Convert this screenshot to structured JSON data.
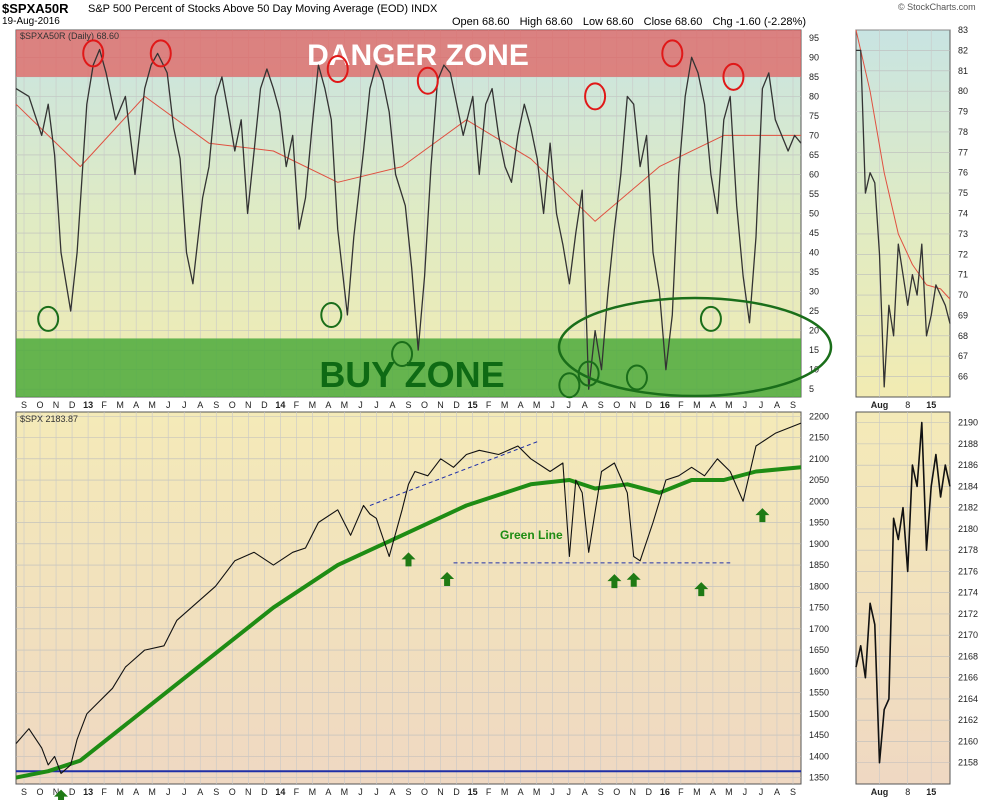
{
  "header": {
    "symbol": "$SPXA50R",
    "description": "S&P 500 Percent of Stocks Above 50 Day Moving Average (EOD)",
    "exchange": "INDX",
    "date": "19-Aug-2016",
    "brand": "© StockCharts.com",
    "quote": {
      "open": "Open 68.60",
      "high": "High 68.60",
      "low": "Low 68.60",
      "close": "Close 68.60",
      "chg": "Chg -1.60 (-2.28%)"
    }
  },
  "colors": {
    "ink": "#333333",
    "ma": "#e05040",
    "green_line": "#1e8c14",
    "danger": "#e06060",
    "buy": "#4caa3c",
    "baseline": "#1f2fa8",
    "circle_red": "#e01818",
    "circle_green": "#1a6e1a"
  },
  "annotations": {
    "danger_zone": "DANGER ZONE",
    "buy_zone": "BUY ZONE",
    "green_line": "Green Line"
  },
  "chart_data": [
    {
      "type": "line",
      "name": "top-panel",
      "legend": "$SPXA50R (Daily) 68.60",
      "ylim": [
        3,
        97
      ],
      "yticks": [
        5,
        10,
        15,
        20,
        25,
        30,
        35,
        40,
        45,
        50,
        55,
        60,
        65,
        70,
        75,
        80,
        85,
        90,
        95
      ],
      "danger_zone": [
        85,
        97
      ],
      "buy_zone": [
        3,
        18
      ],
      "x_labels": [
        "S",
        "O",
        "N",
        "D",
        "13",
        "F",
        "M",
        "A",
        "M",
        "J",
        "J",
        "A",
        "S",
        "O",
        "N",
        "D",
        "14",
        "F",
        "M",
        "A",
        "M",
        "J",
        "J",
        "A",
        "S",
        "O",
        "N",
        "D",
        "15",
        "F",
        "M",
        "A",
        "M",
        "J",
        "J",
        "A",
        "S",
        "O",
        "N",
        "D",
        "16",
        "F",
        "M",
        "A",
        "M",
        "J",
        "J",
        "A",
        "S"
      ],
      "series": [
        {
          "x": [
            0,
            4,
            8,
            10,
            12,
            14,
            17,
            19,
            22,
            24,
            26,
            28,
            31,
            34,
            37,
            40,
            42,
            44,
            47,
            49,
            51,
            53,
            55,
            58,
            60,
            62,
            64,
            66,
            68,
            70,
            72,
            74,
            76,
            78,
            80,
            82,
            84,
            86,
            88,
            90,
            92,
            94,
            96,
            98,
            100,
            103,
            105,
            108,
            110,
            112,
            114,
            116,
            118,
            121,
            123,
            125,
            127,
            129,
            131,
            133,
            135,
            137,
            139,
            142,
            144,
            146,
            148,
            150,
            152,
            154,
            156,
            158,
            160,
            162,
            164,
            166,
            168,
            170,
            172,
            174,
            176,
            178,
            180,
            182,
            184,
            186,
            188,
            190,
            192,
            194,
            196,
            198,
            200,
            202,
            204,
            206,
            208,
            210,
            212,
            214,
            216,
            218,
            220,
            222,
            224,
            226,
            228,
            230,
            232,
            234,
            236,
            238,
            240,
            242,
            244
          ],
          "values": [
            82,
            80,
            70,
            78,
            65,
            40,
            25,
            40,
            78,
            88,
            92,
            86,
            74,
            80,
            60,
            82,
            88,
            91,
            86,
            72,
            64,
            40,
            32,
            54,
            62,
            80,
            85,
            76,
            66,
            74,
            50,
            66,
            82,
            87,
            82,
            76,
            62,
            70,
            46,
            54,
            72,
            88,
            82,
            74,
            46,
            24,
            44,
            66,
            82,
            88,
            84,
            76,
            60,
            52,
            36,
            15,
            34,
            62,
            84,
            88,
            86,
            78,
            70,
            80,
            60,
            78,
            82,
            70,
            62,
            58,
            70,
            78,
            72,
            64,
            50,
            68,
            50,
            42,
            32,
            45,
            56,
            5,
            20,
            10,
            30,
            46,
            60,
            80,
            78,
            62,
            70,
            40,
            30,
            10,
            24,
            60,
            80,
            90,
            86,
            78,
            60,
            50,
            74,
            80,
            52,
            34,
            22,
            44,
            82,
            86,
            74,
            70,
            66,
            70,
            68
          ]
        },
        {
          "x": [
            0,
            20,
            40,
            60,
            80,
            100,
            120,
            140,
            160,
            180,
            200,
            220,
            244
          ],
          "values": [
            78,
            62,
            80,
            68,
            66,
            58,
            62,
            74,
            64,
            48,
            62,
            70,
            70
          ]
        }
      ],
      "circles_red": [
        {
          "x": 24,
          "v": 91
        },
        {
          "x": 45,
          "v": 91
        },
        {
          "x": 100,
          "v": 87
        },
        {
          "x": 128,
          "v": 84
        },
        {
          "x": 180,
          "v": 80
        },
        {
          "x": 204,
          "v": 91
        },
        {
          "x": 223,
          "v": 85
        }
      ],
      "circles_green": [
        {
          "x": 10,
          "v": 23
        },
        {
          "x": 98,
          "v": 24
        },
        {
          "x": 120,
          "v": 14
        },
        {
          "x": 172,
          "v": 6
        },
        {
          "x": 178,
          "v": 9
        },
        {
          "x": 193,
          "v": 8
        },
        {
          "x": 216,
          "v": 23
        }
      ]
    },
    {
      "type": "line",
      "name": "top-inset",
      "ylim": [
        65,
        83
      ],
      "yticks": [
        66,
        67,
        68,
        69,
        70,
        71,
        72,
        73,
        74,
        75,
        76,
        77,
        78,
        79,
        80,
        81,
        82,
        83
      ],
      "x_labels": [
        "Aug",
        "8",
        "15"
      ],
      "series": [
        {
          "x": [
            0,
            1,
            2,
            3,
            4,
            5,
            6,
            7,
            8,
            9,
            10,
            11,
            12,
            13,
            14,
            15,
            16,
            17,
            18,
            19,
            20
          ],
          "values": [
            82,
            82,
            75,
            76,
            75.5,
            72,
            65.5,
            69.5,
            68,
            72.5,
            71,
            69.5,
            71,
            70,
            72.5,
            68,
            69,
            70.5,
            70,
            69.5,
            68.6
          ]
        },
        {
          "x": [
            0,
            3,
            6,
            9,
            12,
            15,
            18,
            20
          ],
          "values": [
            83,
            80,
            76,
            73,
            71.5,
            70.5,
            70.3,
            69.8
          ]
        }
      ]
    },
    {
      "type": "line",
      "name": "bottom-panel",
      "legend": "$SPX 2183.87",
      "ylim": [
        1335,
        2210
      ],
      "yticks": [
        1350,
        1400,
        1450,
        1500,
        1550,
        1600,
        1650,
        1700,
        1750,
        1800,
        1850,
        1900,
        1950,
        2000,
        2050,
        2100,
        2150,
        2200
      ],
      "x_labels": [
        "S",
        "O",
        "N",
        "D",
        "13",
        "F",
        "M",
        "A",
        "M",
        "J",
        "J",
        "A",
        "S",
        "O",
        "N",
        "D",
        "14",
        "F",
        "M",
        "A",
        "M",
        "J",
        "J",
        "A",
        "S",
        "O",
        "N",
        "D",
        "15",
        "F",
        "M",
        "A",
        "M",
        "J",
        "J",
        "A",
        "S",
        "O",
        "N",
        "D",
        "16",
        "F",
        "M",
        "A",
        "M",
        "J",
        "J",
        "A",
        "S"
      ],
      "series": [
        {
          "x": [
            0,
            4,
            8,
            10,
            12,
            14,
            17,
            19,
            22,
            26,
            30,
            34,
            40,
            46,
            50,
            56,
            62,
            68,
            74,
            80,
            86,
            90,
            94,
            100,
            104,
            108,
            110,
            112,
            116,
            120,
            122,
            124,
            128,
            132,
            136,
            140,
            144,
            150,
            156,
            160,
            166,
            170,
            172,
            174,
            176,
            178,
            182,
            186,
            190,
            192,
            194,
            198,
            202,
            206,
            210,
            214,
            218,
            222,
            226,
            230,
            236,
            244
          ],
          "values": [
            1430,
            1465,
            1420,
            1380,
            1400,
            1360,
            1380,
            1440,
            1500,
            1530,
            1560,
            1610,
            1650,
            1660,
            1720,
            1760,
            1800,
            1860,
            1880,
            1850,
            1880,
            1890,
            1950,
            1980,
            1920,
            1990,
            1970,
            1960,
            1870,
            1980,
            2040,
            2070,
            2060,
            2100,
            2080,
            2110,
            2120,
            2110,
            2130,
            2100,
            2070,
            2090,
            1870,
            2050,
            2020,
            1880,
            2070,
            2090,
            2020,
            1870,
            1860,
            1950,
            2050,
            2060,
            2080,
            2060,
            2100,
            2070,
            2000,
            2130,
            2160,
            2184
          ]
        },
        {
          "x": [
            0,
            10,
            20,
            40,
            60,
            80,
            100,
            120,
            140,
            160,
            172,
            180,
            190,
            200,
            210,
            220,
            230,
            244
          ],
          "values": [
            1350,
            1365,
            1390,
            1510,
            1630,
            1750,
            1850,
            1920,
            1990,
            2040,
            2050,
            2030,
            2040,
            2020,
            2050,
            2050,
            2070,
            2080
          ]
        }
      ],
      "horizontal_line": 1365,
      "support_line": 1855
    },
    {
      "type": "line",
      "name": "bottom-inset",
      "ylim": [
        2156,
        2191
      ],
      "yticks": [
        2158,
        2160,
        2162,
        2164,
        2166,
        2168,
        2170,
        2172,
        2174,
        2176,
        2178,
        2180,
        2182,
        2184,
        2186,
        2188,
        2190
      ],
      "x_labels": [
        "Aug",
        "8",
        "15"
      ],
      "series": [
        {
          "x": [
            0,
            1,
            2,
            3,
            4,
            5,
            6,
            7,
            8,
            9,
            10,
            11,
            12,
            13,
            14,
            15,
            16,
            17,
            18,
            19,
            20
          ],
          "values": [
            2167,
            2169,
            2166,
            2173,
            2171,
            2158,
            2163,
            2164,
            2181,
            2179,
            2182,
            2176,
            2186,
            2184,
            2190,
            2178,
            2184,
            2187,
            2183,
            2186,
            2184
          ]
        }
      ]
    }
  ]
}
